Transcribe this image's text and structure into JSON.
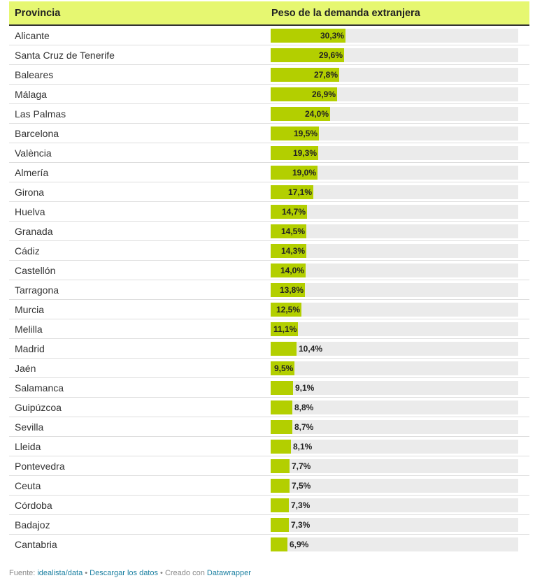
{
  "header": {
    "col1": "Provincia",
    "col2": "Peso de la demanda extranjera"
  },
  "colors": {
    "header_bg": "#e6f771",
    "bar": "#b3cf00",
    "track": "#ebebeb",
    "link": "#1d81a2"
  },
  "chart_data": {
    "type": "table",
    "title": "",
    "columns": [
      "Provincia",
      "Peso de la demanda extranjera"
    ],
    "unit": "%",
    "xlim": [
      0,
      100
    ],
    "rows": [
      {
        "name": "Alicante",
        "value": 30.3,
        "label": "30,3%"
      },
      {
        "name": "Santa Cruz de Tenerife",
        "value": 29.6,
        "label": "29,6%"
      },
      {
        "name": "Baleares",
        "value": 27.8,
        "label": "27,8%"
      },
      {
        "name": "Málaga",
        "value": 26.9,
        "label": "26,9%"
      },
      {
        "name": "Las Palmas",
        "value": 24.0,
        "label": "24,0%"
      },
      {
        "name": "Barcelona",
        "value": 19.5,
        "label": "19,5%"
      },
      {
        "name": "València",
        "value": 19.3,
        "label": "19,3%"
      },
      {
        "name": "Almería",
        "value": 19.0,
        "label": "19,0%"
      },
      {
        "name": "Girona",
        "value": 17.1,
        "label": "17,1%"
      },
      {
        "name": "Huelva",
        "value": 14.7,
        "label": "14,7%"
      },
      {
        "name": "Granada",
        "value": 14.5,
        "label": "14,5%"
      },
      {
        "name": "Cádiz",
        "value": 14.3,
        "label": "14,3%"
      },
      {
        "name": "Castellón",
        "value": 14.0,
        "label": "14,0%"
      },
      {
        "name": "Tarragona",
        "value": 13.8,
        "label": "13,8%"
      },
      {
        "name": "Murcia",
        "value": 12.5,
        "label": "12,5%"
      },
      {
        "name": "Melilla",
        "value": 11.1,
        "label": "11,1%"
      },
      {
        "name": "Madrid",
        "value": 10.4,
        "label": "10,4%"
      },
      {
        "name": "Jaén",
        "value": 9.5,
        "label": "9,5%"
      },
      {
        "name": "Salamanca",
        "value": 9.1,
        "label": "9,1%"
      },
      {
        "name": "Guipúzcoa",
        "value": 8.8,
        "label": "8,8%"
      },
      {
        "name": "Sevilla",
        "value": 8.7,
        "label": "8,7%"
      },
      {
        "name": "Lleida",
        "value": 8.1,
        "label": "8,1%"
      },
      {
        "name": "Pontevedra",
        "value": 7.7,
        "label": "7,7%"
      },
      {
        "name": "Ceuta",
        "value": 7.5,
        "label": "7,5%"
      },
      {
        "name": "Córdoba",
        "value": 7.3,
        "label": "7,3%"
      },
      {
        "name": "Badajoz",
        "value": 7.3,
        "label": "7,3%"
      },
      {
        "name": "Cantabria",
        "value": 6.9,
        "label": "6,9%"
      }
    ]
  },
  "footer": {
    "source_prefix": "Fuente: ",
    "source_link": "idealista/data",
    "sep1": " • ",
    "download_link": "Descargar los datos",
    "sep2": " • Creado con ",
    "tool_link": "Datawrapper"
  }
}
